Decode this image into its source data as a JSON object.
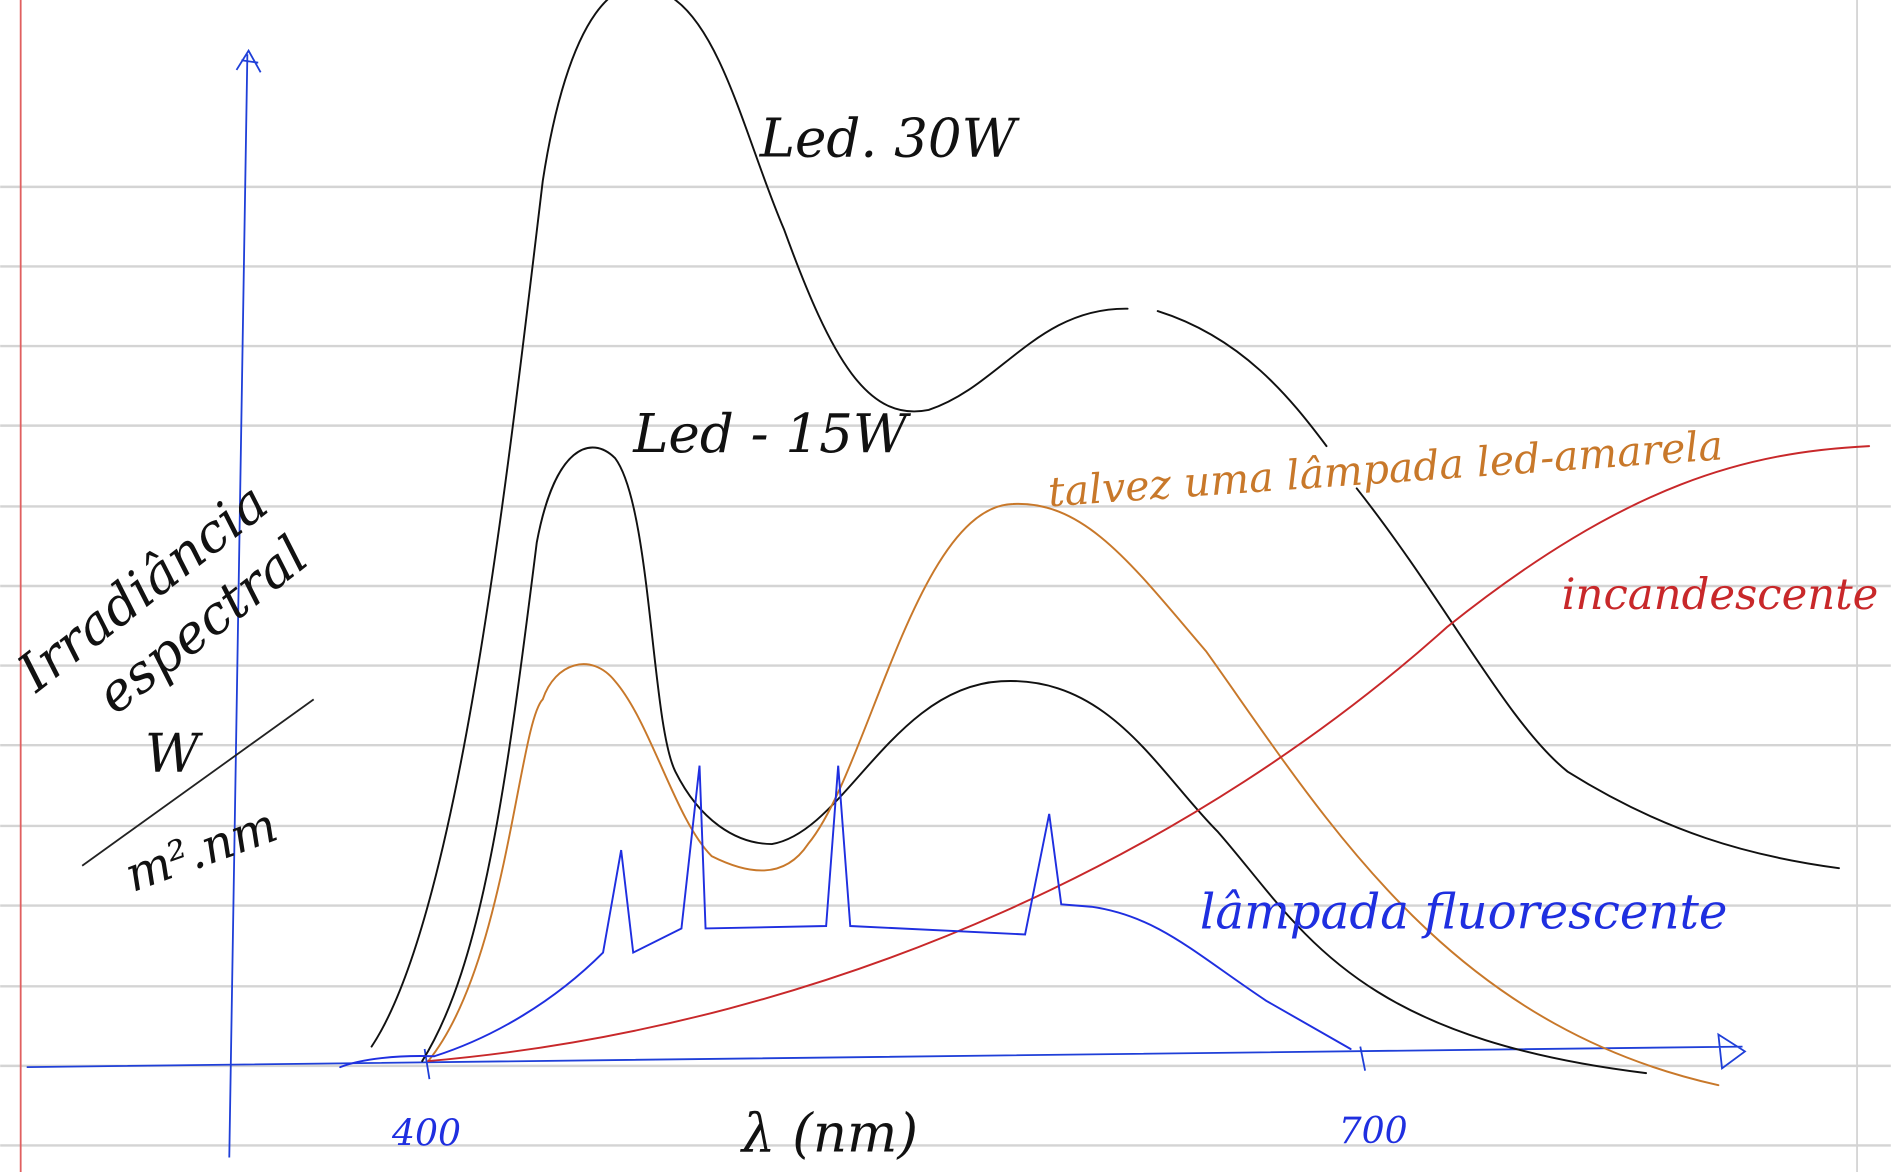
{
  "axes": {
    "y_label": [
      "Irradiância",
      "espectral"
    ],
    "unit_numerator": "W",
    "unit_denominator": "m².nm",
    "x_label": "λ (nm)",
    "x_ticks": [
      "400",
      "700"
    ]
  },
  "curves": [
    {
      "label": "Led. 30W"
    },
    {
      "label": "Led - 15W"
    },
    {
      "label": "talvez uma lâmpada led-amarela"
    },
    {
      "label": "incandescente"
    },
    {
      "label": "lâmpada fluorescente"
    }
  ]
}
